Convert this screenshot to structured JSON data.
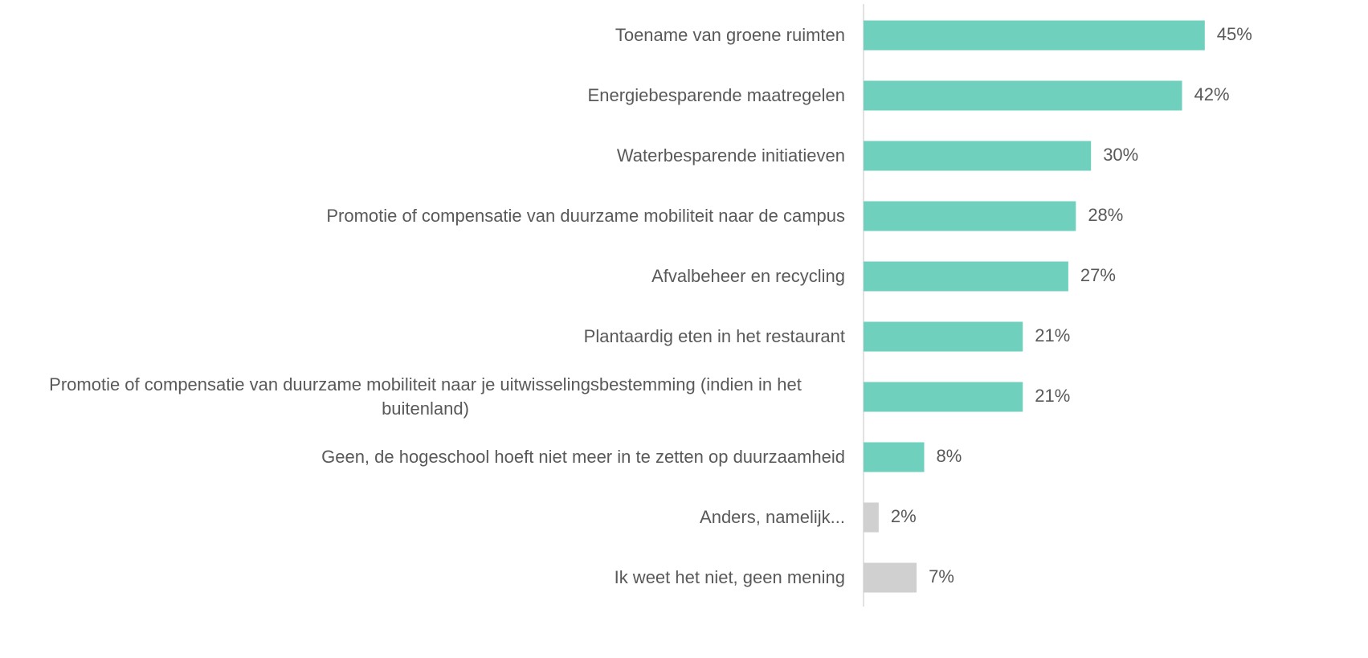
{
  "chart_data": {
    "type": "barh",
    "categories": [
      "Toename van groene ruimten",
      "Energiebesparende maatregelen",
      "Waterbesparende initiatieven",
      "Promotie of compensatie van duurzame mobiliteit naar de campus",
      "Afvalbeheer en recycling",
      "Plantaardig eten in het restaurant",
      "Promotie of compensatie van duurzame mobiliteit naar je uitwisselingsbestemming (indien in het buitenland)",
      "Geen, de hogeschool hoeft niet meer in te zetten op duurzaamheid",
      "Anders, namelijk...",
      "Ik weet het niet, geen mening"
    ],
    "values": [
      45,
      42,
      30,
      28,
      27,
      21,
      21,
      8,
      2,
      7
    ],
    "value_labels": [
      "45%",
      "42%",
      "30%",
      "28%",
      "27%",
      "21%",
      "21%",
      "8%",
      "2%",
      "7%"
    ],
    "colors": [
      "#6fd0bd",
      "#6fd0bd",
      "#6fd0bd",
      "#6fd0bd",
      "#6fd0bd",
      "#6fd0bd",
      "#6fd0bd",
      "#6fd0bd",
      "#d0d0d0",
      "#d0d0d0"
    ],
    "xlim": [
      0,
      50
    ]
  }
}
